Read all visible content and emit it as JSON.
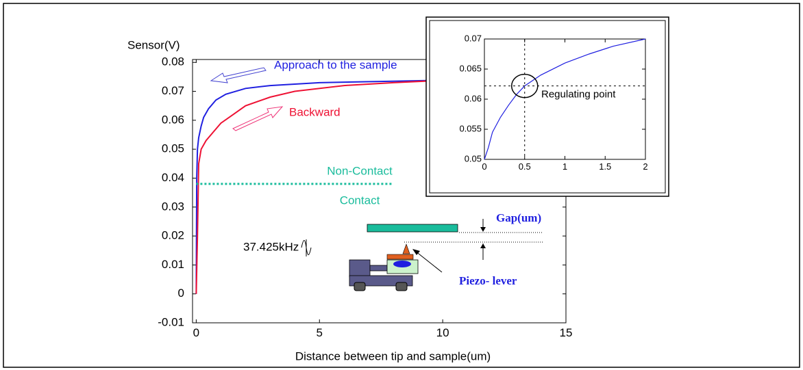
{
  "chart_data": [
    {
      "type": "line",
      "x_label": "Distance between tip and sample(um)",
      "y_label": "Sensor(V)",
      "xlim": [
        -0.15,
        15
      ],
      "xticks": [
        0,
        5,
        10,
        15
      ],
      "ylim": [
        -0.01,
        0.081
      ],
      "yticks": [
        -0.01,
        0,
        0.01,
        0.02,
        0.03,
        0.04,
        0.05,
        0.06,
        0.07,
        0.08
      ],
      "series": [
        {
          "name": "Approach to the sample",
          "color": "#1f1fe0",
          "x": [
            0,
            0.02,
            0.05,
            0.1,
            0.2,
            0.3,
            0.5,
            0.8,
            1.2,
            2,
            3,
            5,
            8,
            11,
            15
          ],
          "values": [
            0,
            0.04,
            0.05,
            0.054,
            0.058,
            0.061,
            0.064,
            0.067,
            0.069,
            0.071,
            0.072,
            0.073,
            0.0735,
            0.074,
            0.074
          ]
        },
        {
          "name": "Backward",
          "color": "#ee1133",
          "x": [
            0,
            0.05,
            0.1,
            0.2,
            0.4,
            0.7,
            1,
            1.5,
            2,
            3,
            4,
            6,
            8,
            10,
            12
          ],
          "values": [
            0,
            0.02,
            0.045,
            0.05,
            0.053,
            0.056,
            0.059,
            0.062,
            0.065,
            0.068,
            0.07,
            0.072,
            0.073,
            0.0738,
            0.074
          ]
        }
      ],
      "reference_line": {
        "value": 0.038,
        "x": [
          0,
          8
        ],
        "color": "#1abc9c",
        "labels": [
          "Non-Contact",
          "Contact"
        ]
      },
      "annotations": [
        "Gap(um)",
        "37.425kHz",
        "Piezo- lever"
      ]
    },
    {
      "type": "line",
      "xlim": [
        0,
        2
      ],
      "xticks": [
        0,
        0.5,
        1,
        1.5,
        2
      ],
      "ylim": [
        0.05,
        0.07
      ],
      "yticks": [
        0.05,
        0.055,
        0.06,
        0.065,
        0.07
      ],
      "series": [
        {
          "color": "#1f1fe0",
          "x": [
            0,
            0.05,
            0.1,
            0.2,
            0.3,
            0.4,
            0.5,
            0.7,
            1,
            1.3,
            1.6,
            2
          ],
          "values": [
            0.05,
            0.052,
            0.0545,
            0.057,
            0.059,
            0.0608,
            0.0622,
            0.064,
            0.066,
            0.0675,
            0.0688,
            0.07
          ]
        }
      ],
      "marker": {
        "x": 0.5,
        "y": 0.0622,
        "label": "Regulating point"
      }
    }
  ]
}
